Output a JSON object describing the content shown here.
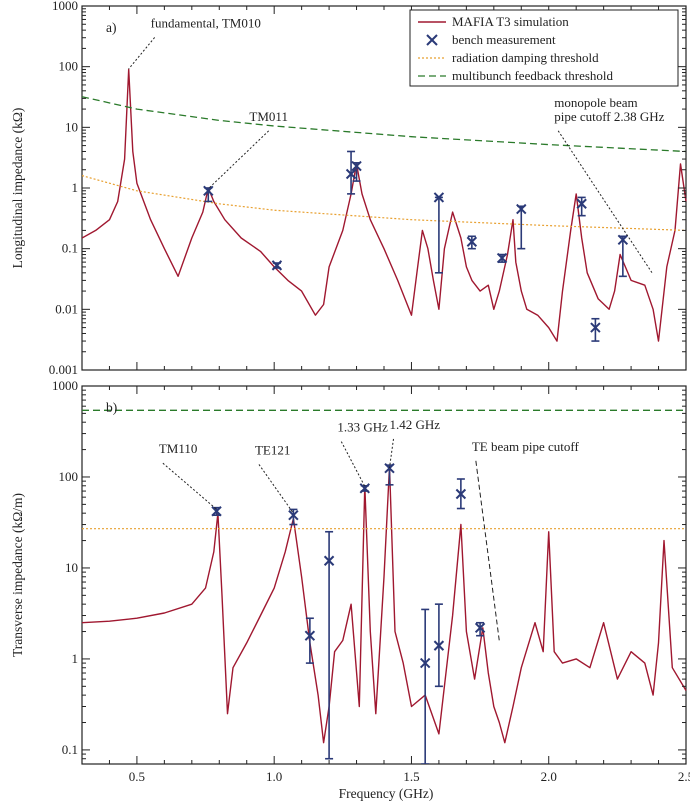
{
  "colors": {
    "simulation": "#a01830",
    "measurement": "#2b3a78",
    "radiation": "#e8a030",
    "multibunch": "#2a7a2a",
    "axis": "#222222"
  },
  "chart_data": [
    {
      "type": "line",
      "panel_label": "a)",
      "ylabel": "Longitudinal impedance (kΩ)",
      "xlim": [
        0.3,
        2.5
      ],
      "ylim": [
        0.001,
        1000
      ],
      "yscale": "log",
      "yticks": [
        0.001,
        0.01,
        0.1,
        1,
        10,
        100,
        1000
      ],
      "ytick_labels": [
        "0.001",
        "0.01",
        "0.1",
        "1",
        "10",
        "100",
        "1000"
      ],
      "legend": {
        "position": "top-right",
        "entries": [
          {
            "label": "MAFIA T3 simulation",
            "kind": "line",
            "color_key": "simulation"
          },
          {
            "label": "bench measurement",
            "kind": "marker",
            "color_key": "measurement"
          },
          {
            "label": "radiation damping threshold",
            "kind": "dotted",
            "color_key": "radiation"
          },
          {
            "label": "multibunch feedback threshold",
            "kind": "dashed",
            "color_key": "multibunch"
          }
        ]
      },
      "annotations": [
        {
          "lines": [
            "fundamental, TM010"
          ],
          "x": 0.47,
          "y": 85
        },
        {
          "lines": [
            "TM011"
          ],
          "x": 0.76,
          "y": 0.9
        },
        {
          "lines": [
            "monopole beam",
            "pipe cutoff 2.38 GHz"
          ],
          "x": 2.38,
          "y": 0.035
        }
      ],
      "series": [
        {
          "name": "MAFIA T3 simulation",
          "x": [
            0.3,
            0.35,
            0.4,
            0.43,
            0.455,
            0.47,
            0.485,
            0.5,
            0.55,
            0.6,
            0.65,
            0.7,
            0.74,
            0.76,
            0.78,
            0.82,
            0.88,
            0.95,
            1.0,
            1.05,
            1.1,
            1.15,
            1.18,
            1.2,
            1.25,
            1.28,
            1.3,
            1.32,
            1.35,
            1.4,
            1.45,
            1.5,
            1.52,
            1.54,
            1.56,
            1.58,
            1.6,
            1.62,
            1.65,
            1.68,
            1.7,
            1.72,
            1.75,
            1.78,
            1.8,
            1.82,
            1.85,
            1.87,
            1.88,
            1.9,
            1.92,
            1.96,
            2.0,
            2.03,
            2.05,
            2.08,
            2.1,
            2.12,
            2.14,
            2.18,
            2.22,
            2.24,
            2.26,
            2.3,
            2.35,
            2.38,
            2.4,
            2.43,
            2.46,
            2.48,
            2.5
          ],
          "y": [
            0.15,
            0.2,
            0.3,
            0.6,
            3,
            90,
            4,
            1.2,
            0.3,
            0.1,
            0.035,
            0.15,
            0.4,
            1.0,
            0.6,
            0.3,
            0.15,
            0.09,
            0.05,
            0.03,
            0.02,
            0.008,
            0.012,
            0.05,
            0.2,
            0.8,
            2.5,
            0.8,
            0.3,
            0.1,
            0.03,
            0.008,
            0.04,
            0.2,
            0.1,
            0.03,
            0.01,
            0.1,
            0.4,
            0.15,
            0.05,
            0.03,
            0.02,
            0.025,
            0.01,
            0.02,
            0.08,
            0.3,
            0.06,
            0.02,
            0.01,
            0.008,
            0.005,
            0.003,
            0.02,
            0.2,
            0.8,
            0.15,
            0.04,
            0.015,
            0.01,
            0.02,
            0.08,
            0.03,
            0.025,
            0.01,
            0.003,
            0.05,
            0.2,
            2.5,
            0.6
          ]
        },
        {
          "name": "radiation damping threshold",
          "x": [
            0.3,
            0.5,
            0.8,
            1.0,
            1.5,
            2.0,
            2.5
          ],
          "y": [
            1.6,
            0.9,
            0.55,
            0.43,
            0.3,
            0.24,
            0.2
          ]
        },
        {
          "name": "multibunch feedback threshold",
          "x": [
            0.3,
            0.5,
            0.8,
            1.0,
            1.5,
            2.0,
            2.5
          ],
          "y": [
            32,
            20,
            13,
            10.5,
            7,
            5.2,
            4
          ]
        },
        {
          "name": "bench measurement",
          "points": [
            {
              "x": 0.76,
              "y": 0.9,
              "lo": 0.6,
              "hi": 1.0
            },
            {
              "x": 1.01,
              "y": 0.053,
              "lo": 0.048,
              "hi": 0.058
            },
            {
              "x": 1.28,
              "y": 1.7,
              "lo": 0.8,
              "hi": 4
            },
            {
              "x": 1.3,
              "y": 2.3,
              "lo": 1.3,
              "hi": 2.6
            },
            {
              "x": 1.6,
              "y": 0.7,
              "lo": 0.04,
              "hi": 0.7
            },
            {
              "x": 1.72,
              "y": 0.13,
              "lo": 0.1,
              "hi": 0.16
            },
            {
              "x": 1.83,
              "y": 0.07,
              "lo": 0.06,
              "hi": 0.08
            },
            {
              "x": 1.9,
              "y": 0.45,
              "lo": 0.1,
              "hi": 0.5
            },
            {
              "x": 2.12,
              "y": 0.55,
              "lo": 0.35,
              "hi": 0.7
            },
            {
              "x": 2.17,
              "y": 0.005,
              "lo": 0.003,
              "hi": 0.007
            },
            {
              "x": 2.27,
              "y": 0.14,
              "lo": 0.035,
              "hi": 0.16
            }
          ]
        }
      ]
    },
    {
      "type": "line",
      "panel_label": "b)",
      "xlabel": "Frequency (GHz)",
      "ylabel": "Transverse impedance (kΩ/m)",
      "xlim": [
        0.3,
        2.5
      ],
      "ylim": [
        0.07,
        1000
      ],
      "yscale": "log",
      "xticks": [
        0.5,
        1.0,
        1.5,
        2.0,
        2.5
      ],
      "xtick_labels": [
        "0.5",
        "1.0",
        "1.5",
        "2.0",
        "2.5"
      ],
      "yticks": [
        0.1,
        1,
        10,
        100,
        1000
      ],
      "ytick_labels": [
        "0.1",
        "1",
        "10",
        "100",
        "1000"
      ],
      "annotations": [
        {
          "lines": [
            "TM110"
          ],
          "x": 0.79,
          "y": 42
        },
        {
          "lines": [
            "TE121"
          ],
          "x": 1.07,
          "y": 38
        },
        {
          "lines": [
            "1.33 GHz"
          ],
          "x": 1.33,
          "y": 75
        },
        {
          "lines": [
            "1.42 GHz"
          ],
          "x": 1.42,
          "y": 120
        },
        {
          "lines": [
            "TE beam pipe cutoff"
          ],
          "x": 1.82,
          "y": 1.5
        }
      ],
      "series": [
        {
          "name": "MAFIA T3 simulation",
          "x": [
            0.3,
            0.4,
            0.5,
            0.6,
            0.7,
            0.75,
            0.78,
            0.795,
            0.81,
            0.83,
            0.85,
            0.9,
            0.95,
            1.0,
            1.04,
            1.07,
            1.1,
            1.13,
            1.16,
            1.18,
            1.2,
            1.22,
            1.25,
            1.28,
            1.31,
            1.33,
            1.35,
            1.37,
            1.4,
            1.42,
            1.44,
            1.47,
            1.5,
            1.55,
            1.6,
            1.65,
            1.68,
            1.7,
            1.73,
            1.76,
            1.78,
            1.8,
            1.82,
            1.84,
            1.87,
            1.9,
            1.95,
            1.98,
            2.0,
            2.02,
            2.05,
            2.1,
            2.15,
            2.2,
            2.25,
            2.3,
            2.35,
            2.38,
            2.4,
            2.42,
            2.45,
            2.5
          ],
          "y": [
            2.5,
            2.6,
            2.8,
            3.2,
            4,
            6,
            15,
            40,
            5,
            0.25,
            0.8,
            1.5,
            3,
            6,
            15,
            35,
            8,
            1.5,
            0.4,
            0.12,
            0.3,
            1.2,
            1.6,
            4,
            0.3,
            80,
            2,
            0.25,
            8,
            130,
            2,
            0.9,
            0.3,
            0.4,
            0.15,
            3,
            30,
            2,
            0.6,
            2.2,
            0.7,
            0.3,
            0.2,
            0.12,
            0.3,
            0.8,
            2.5,
            1.2,
            25,
            1.2,
            0.9,
            1.0,
            0.8,
            2.5,
            0.6,
            1.2,
            0.9,
            0.4,
            1.5,
            20,
            0.8,
            0.45
          ]
        },
        {
          "name": "radiation damping threshold",
          "x": [
            0.3,
            2.5
          ],
          "y": [
            27,
            27
          ]
        },
        {
          "name": "multibunch feedback threshold",
          "x": [
            0.3,
            2.5
          ],
          "y": [
            540,
            540
          ]
        },
        {
          "name": "bench measurement",
          "points": [
            {
              "x": 0.79,
              "y": 42,
              "lo": 38,
              "hi": 46
            },
            {
              "x": 1.07,
              "y": 38,
              "lo": 30,
              "hi": 44
            },
            {
              "x": 1.13,
              "y": 1.8,
              "lo": 0.9,
              "hi": 2.8
            },
            {
              "x": 1.2,
              "y": 12,
              "lo": 0.08,
              "hi": 25
            },
            {
              "x": 1.33,
              "y": 75,
              "lo": 70,
              "hi": 80
            },
            {
              "x": 1.42,
              "y": 125,
              "lo": 82,
              "hi": 135
            },
            {
              "x": 1.55,
              "y": 0.9,
              "lo": 0.07,
              "hi": 3.5
            },
            {
              "x": 1.6,
              "y": 1.4,
              "lo": 0.5,
              "hi": 4
            },
            {
              "x": 1.68,
              "y": 65,
              "lo": 45,
              "hi": 95
            },
            {
              "x": 1.75,
              "y": 2.2,
              "lo": 1.8,
              "hi": 2.5
            }
          ]
        }
      ]
    }
  ]
}
